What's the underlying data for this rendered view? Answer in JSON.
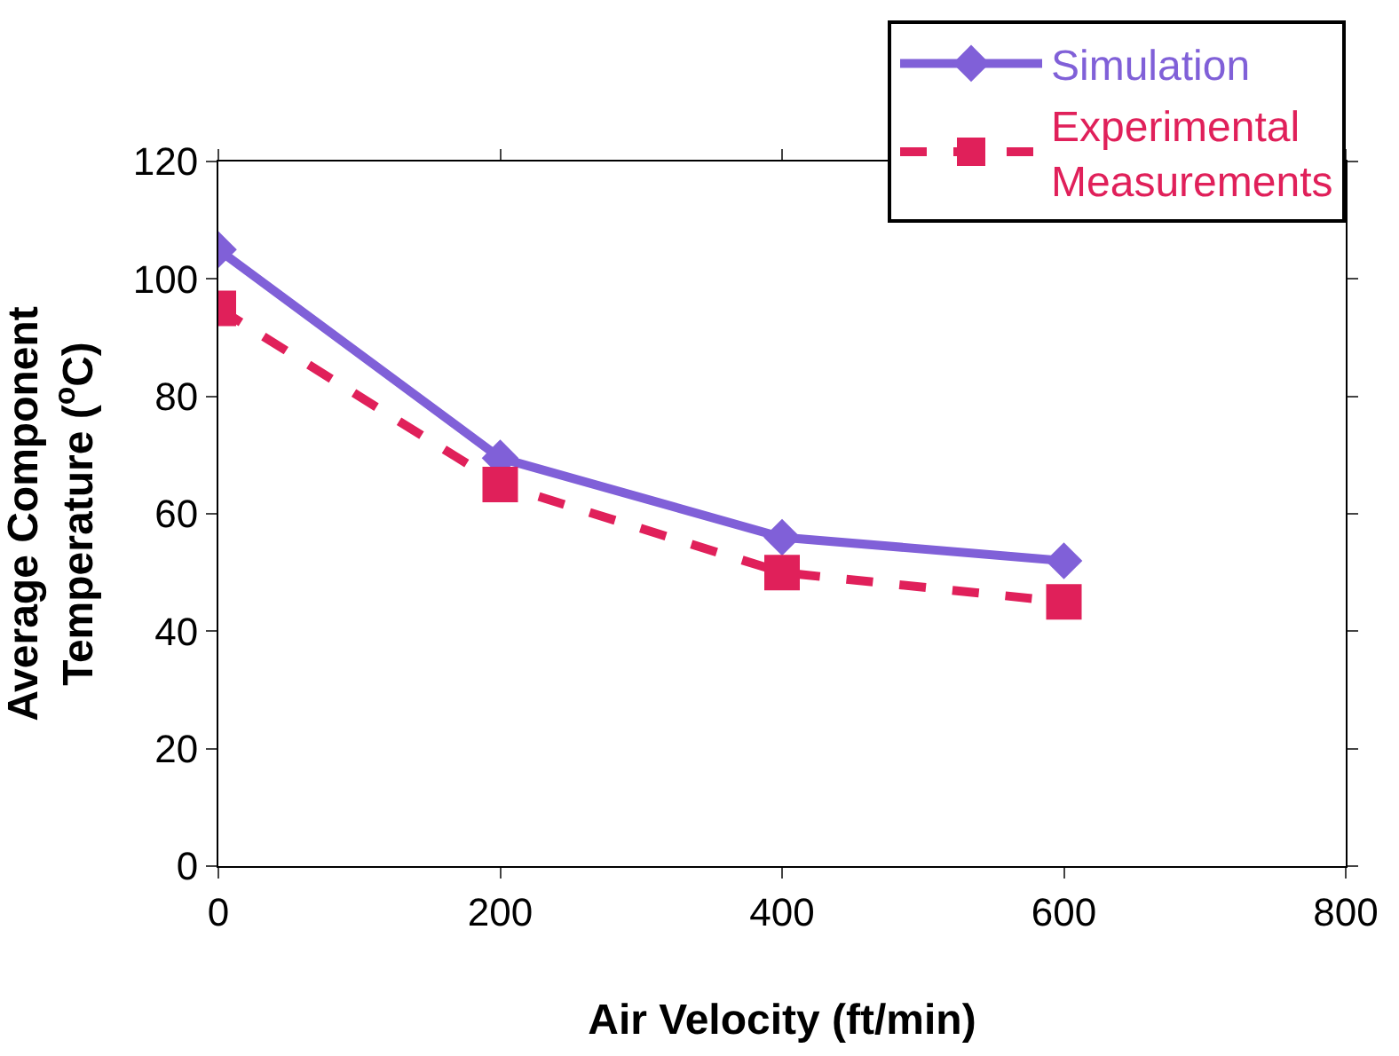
{
  "chart_data": {
    "type": "line",
    "xlabel": "Air Velocity (ft/min)",
    "ylabel": "Average Component\nTemperature ($^{o}$C)",
    "x": [
      0,
      200,
      400,
      600
    ],
    "series": [
      {
        "name": "Simulation",
        "color": "#8060d8",
        "values": [
          105,
          69.5,
          56,
          52
        ],
        "marker": "diamond",
        "line_style": "solid"
      },
      {
        "name": "Experimental\nMeasurements",
        "color": "#e0205a",
        "values": [
          95,
          65,
          50,
          45
        ],
        "marker": "square",
        "line_style": "dashed"
      }
    ],
    "xlim": [
      0,
      800
    ],
    "xticks": [
      0,
      200,
      400,
      600,
      800
    ],
    "ylim": [
      0,
      120
    ],
    "yticks": [
      0,
      20,
      40,
      60,
      80,
      100,
      120
    ],
    "legend": "top right"
  }
}
